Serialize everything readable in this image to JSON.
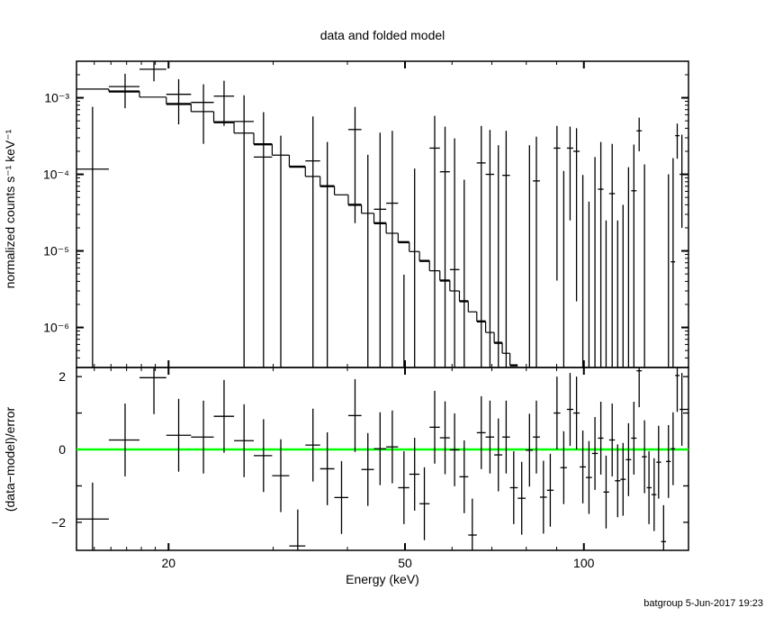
{
  "chart_data": [
    {
      "type": "scatter",
      "title": "data and folded model",
      "ylabel": "normalized counts s⁻¹ keV⁻¹",
      "xlabel": "",
      "xscale": "log",
      "yscale": "log",
      "xlim": [
        14,
        150
      ],
      "ylim": [
        3e-07,
        0.003
      ],
      "ytick_labels": [
        "10⁻³",
        "10⁻⁴",
        "10⁻⁵",
        "10⁻⁶"
      ],
      "ytick_values": [
        0.001,
        0.0001,
        1e-05,
        1e-06
      ],
      "grid": false,
      "data_color": "#000000",
      "model_color": "#000000",
      "energy": [
        14.9,
        16.9,
        18.9,
        20.8,
        22.9,
        24.8,
        26.8,
        28.9,
        30.9,
        33.0,
        35.0,
        37.0,
        39.1,
        41.2,
        43.3,
        45.4,
        47.6,
        49.8,
        51.9,
        53.9,
        56.1,
        58.4,
        60.6,
        62.9,
        64.9,
        67.2,
        69.5,
        71.8,
        74.0,
        76.2,
        78.6,
        81.0,
        83.2,
        85.5,
        87.8,
        90.1,
        92.5,
        94.8,
        97.2,
        99.6,
        102,
        104.4,
        106.8,
        109,
        111.6,
        114,
        116.4,
        118.9,
        121.4,
        123.9,
        126.5,
        128.7,
        131.3,
        133.6,
        136.2,
        138.8,
        141.3,
        143.6,
        146.2
      ],
      "rate": [
        0.000117,
        0.0014,
        0.00236,
        0.00111,
        0.00087,
        0.00105,
        0.00049,
        0.000168,
        null,
        null,
        0.00015,
        null,
        null,
        0.000385,
        null,
        3.5e-05,
        4.2e-05,
        null,
        null,
        null,
        0.00022,
        0.000108,
        5.7e-06,
        null,
        null,
        0.000141,
        0.0001,
        null,
        9.7e-05,
        null,
        null,
        null,
        8.2e-05,
        null,
        null,
        0.00022,
        null,
        0.00022,
        0.0002,
        null,
        null,
        null,
        6.4e-05,
        null,
        5.6e-05,
        null,
        null,
        null,
        6.1e-05,
        0.00037,
        null,
        null,
        null,
        null,
        null,
        null,
        7.2e-06,
        0.00032,
        0.0001
      ],
      "rate_hi": [
        0.00076,
        0.00206,
        0.0032,
        0.00175,
        0.0015,
        0.00167,
        0.00108,
        0.00065,
        0.00032,
        null,
        0.00057,
        0.000265,
        null,
        0.00076,
        0.00018,
        0.00035,
        0.00037,
        4.9e-06,
        0.000119,
        null,
        0.00058,
        0.00042,
        0.000295,
        8.5e-05,
        null,
        0.00043,
        0.00038,
        0.00024,
        0.00037,
        null,
        null,
        0.00024,
        0.00031,
        null,
        null,
        0.00043,
        0.000111,
        0.00042,
        0.0004,
        9.8e-05,
        4.4e-05,
        0.000168,
        0.000265,
        2.5e-05,
        0.00025,
        2.5e-05,
        4e-05,
        0.000124,
        0.000245,
        0.00055,
        0.000135,
        null,
        null,
        null,
        null,
        0.0001,
        0.000163,
        0.00046,
        0.00033
      ],
      "rate_lo": [
        null,
        0.00073,
        0.00164,
        0.00045,
        0.00025,
        0.00043,
        null,
        null,
        null,
        null,
        null,
        null,
        null,
        2.3e-05,
        null,
        null,
        null,
        null,
        null,
        null,
        null,
        null,
        null,
        null,
        null,
        null,
        null,
        null,
        null,
        null,
        null,
        null,
        null,
        null,
        null,
        4.1e-06,
        null,
        2.5e-05,
        2.2e-06,
        null,
        null,
        null,
        null,
        null,
        null,
        null,
        null,
        null,
        null,
        0.0002,
        null,
        null,
        null,
        null,
        null,
        null,
        null,
        0.00016,
        2e-05
      ],
      "model": [
        0.0013,
        0.00121,
        0.00102,
        0.00083,
        0.00066,
        0.00048,
        0.000346,
        0.000247,
        0.000178,
        0.000126,
        9.4e-05,
        7e-05,
        5.4e-05,
        4e-05,
        3.1e-05,
        2.3e-05,
        1.7e-05,
        1.3e-05,
        9.8e-06,
        7.4e-06,
        5.5e-06,
        4.1e-06,
        3e-06,
        2.2e-06,
        1.6e-06,
        1.2e-06,
        8.6e-07,
        6.3e-07,
        4.6e-07,
        3.2e-07
      ]
    },
    {
      "type": "scatter",
      "title": "",
      "ylabel": "(data−model)/error",
      "xlabel": "Energy (keV)",
      "xscale": "log",
      "xlim": [
        14,
        150
      ],
      "ylim": [
        -2.77,
        2.25
      ],
      "xtick_labels": [
        "20",
        "50",
        "100"
      ],
      "xtick_values": [
        20,
        50,
        100
      ],
      "ytick_labels": [
        "2",
        "0",
        "−2"
      ],
      "ytick_values": [
        2,
        0,
        -2
      ],
      "reference_line": 0,
      "reference_color": "#00ff00",
      "residual": [
        -1.91,
        0.26,
        1.97,
        0.39,
        0.34,
        0.91,
        0.24,
        -0.17,
        -0.72,
        -2.65,
        0.12,
        -0.53,
        -1.32,
        0.93,
        -0.55,
        0.02,
        0.07,
        -1.05,
        -0.68,
        -1.49,
        0.61,
        0.32,
        -0.01,
        -0.75,
        -2.35,
        0.46,
        0.34,
        -0.15,
        0.34,
        -1.05,
        -1.34,
        -0.02,
        0.34,
        -1.31,
        -1.12,
        1.0,
        -0.5,
        1.1,
        1.0,
        -0.48,
        -0.77,
        -0.11,
        0.31,
        -1.17,
        0.26,
        -0.86,
        -0.82,
        -0.28,
        0.31,
        2.16,
        -0.2,
        -1.05,
        -1.24,
        -0.35,
        -2.53,
        -0.33,
        0.02,
        2.03,
        1.1
      ],
      "residual_err": 1
    }
  ],
  "footer": "batgroup  5-Jun-2017 19:23"
}
